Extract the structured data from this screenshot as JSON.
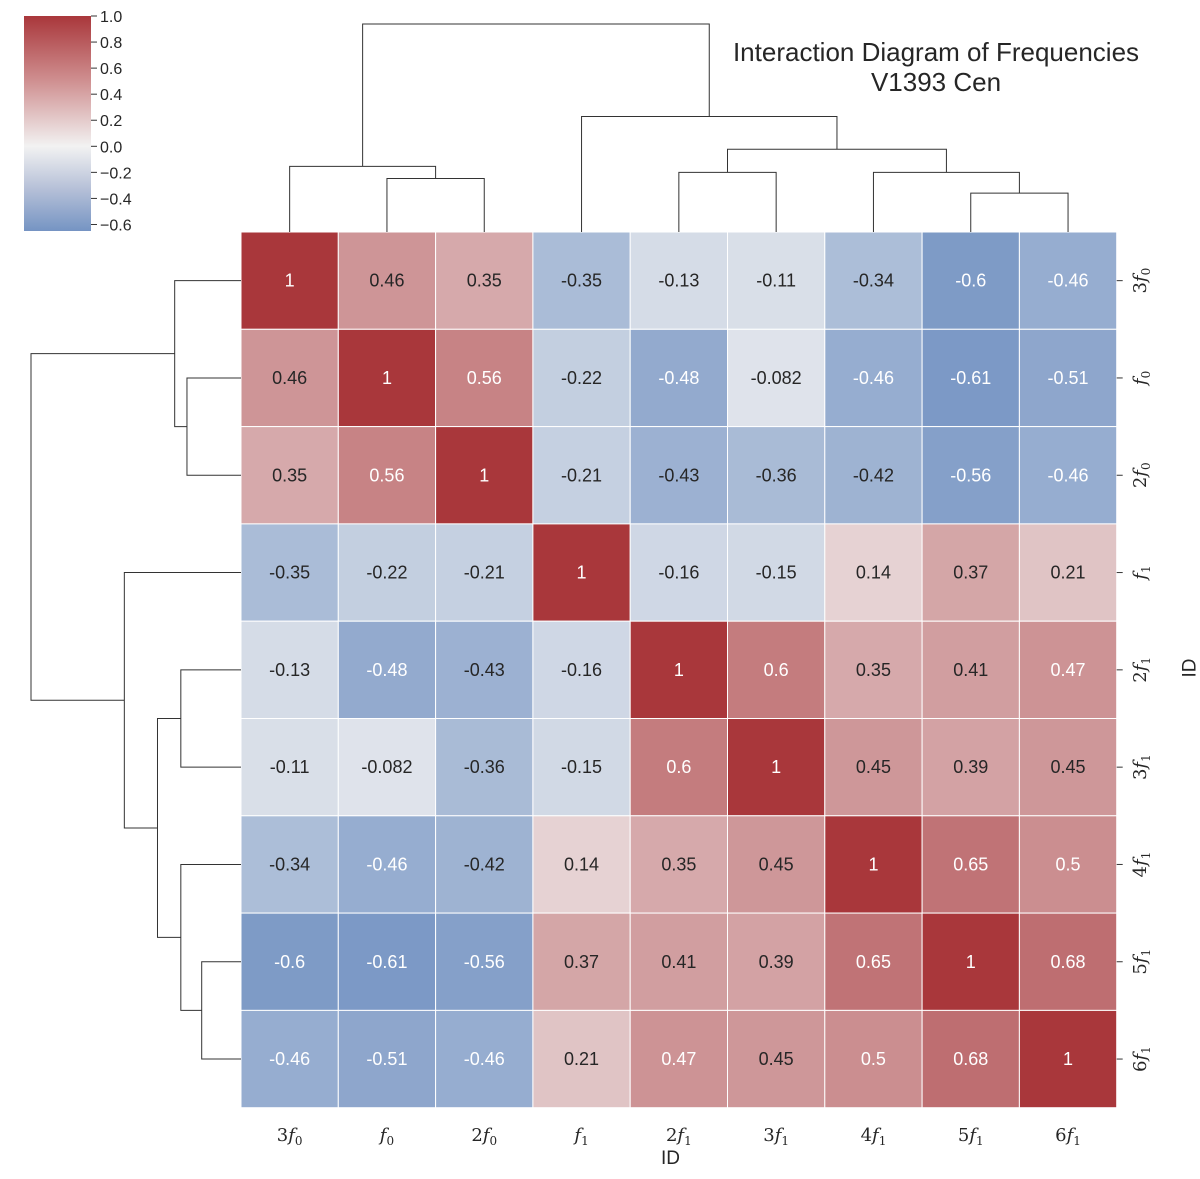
{
  "chart_data": {
    "type": "heatmap",
    "title": "Interaction Diagram of Frequencies",
    "subtitle": "V1393 Cen",
    "xlabel": "ID",
    "ylabel": "ID",
    "labels": [
      "3f0",
      "f0",
      "2f0",
      "f1",
      "2f1",
      "3f1",
      "4f1",
      "5f1",
      "6f1"
    ],
    "label_parts": [
      {
        "coef": "3",
        "sub": "0"
      },
      {
        "coef": "",
        "sub": "0"
      },
      {
        "coef": "2",
        "sub": "0"
      },
      {
        "coef": "",
        "sub": "1"
      },
      {
        "coef": "2",
        "sub": "1"
      },
      {
        "coef": "3",
        "sub": "1"
      },
      {
        "coef": "4",
        "sub": "1"
      },
      {
        "coef": "5",
        "sub": "1"
      },
      {
        "coef": "6",
        "sub": "1"
      }
    ],
    "matrix": [
      [
        1,
        0.46,
        0.35,
        -0.35,
        -0.13,
        -0.11,
        -0.34,
        -0.6,
        -0.46
      ],
      [
        0.46,
        1,
        0.56,
        -0.22,
        -0.48,
        -0.082,
        -0.46,
        -0.61,
        -0.51
      ],
      [
        0.35,
        0.56,
        1,
        -0.21,
        -0.43,
        -0.36,
        -0.42,
        -0.56,
        -0.46
      ],
      [
        -0.35,
        -0.22,
        -0.21,
        1,
        -0.16,
        -0.15,
        0.14,
        0.37,
        0.21
      ],
      [
        -0.13,
        -0.48,
        -0.43,
        -0.16,
        1,
        0.6,
        0.35,
        0.41,
        0.47
      ],
      [
        -0.11,
        -0.082,
        -0.36,
        -0.15,
        0.6,
        1,
        0.45,
        0.39,
        0.45
      ],
      [
        -0.34,
        -0.46,
        -0.42,
        0.14,
        0.35,
        0.45,
        1,
        0.65,
        0.5
      ],
      [
        -0.6,
        -0.61,
        -0.56,
        0.37,
        0.41,
        0.39,
        0.65,
        1,
        0.68
      ],
      [
        -0.46,
        -0.51,
        -0.46,
        0.21,
        0.47,
        0.45,
        0.5,
        0.68,
        1
      ]
    ],
    "colorbar": {
      "range": [
        -0.65,
        1.0
      ],
      "ticks": [
        1.0,
        0.8,
        0.6,
        0.4,
        0.2,
        0.0,
        -0.2,
        -0.4,
        -0.6
      ],
      "tick_labels": [
        "1.0",
        "0.8",
        "0.6",
        "0.4",
        "0.2",
        "0.0",
        "−0.2",
        "−0.4",
        "−0.6"
      ],
      "colormap": "blue-white-red diverging"
    },
    "dendrogram": {
      "linkage": [
        {
          "left": "f0",
          "right": "2f0",
          "height": 0.44
        },
        {
          "left": "3f0",
          "right": "(f0,2f0)",
          "height": 0.54
        },
        {
          "left": "5f1",
          "right": "6f1",
          "height": 0.32
        },
        {
          "left": "4f1",
          "right": "(5f1,6f1)",
          "height": 0.49
        },
        {
          "left": "2f1",
          "right": "3f1",
          "height": 0.49
        },
        {
          "left": "(2f1,3f1)",
          "right": "(4f1,5f1,6f1)",
          "height": 0.68
        },
        {
          "left": "f1",
          "right": "(2f1..6f1)",
          "height": 0.95
        },
        {
          "left": "(3f0,f0,2f0)",
          "right": "(f1..6f1)",
          "height": 1.71
        }
      ]
    },
    "colors": {
      "max": "#b2182b",
      "mid": "#f7f7f7",
      "min": "#4a6fa8"
    }
  }
}
